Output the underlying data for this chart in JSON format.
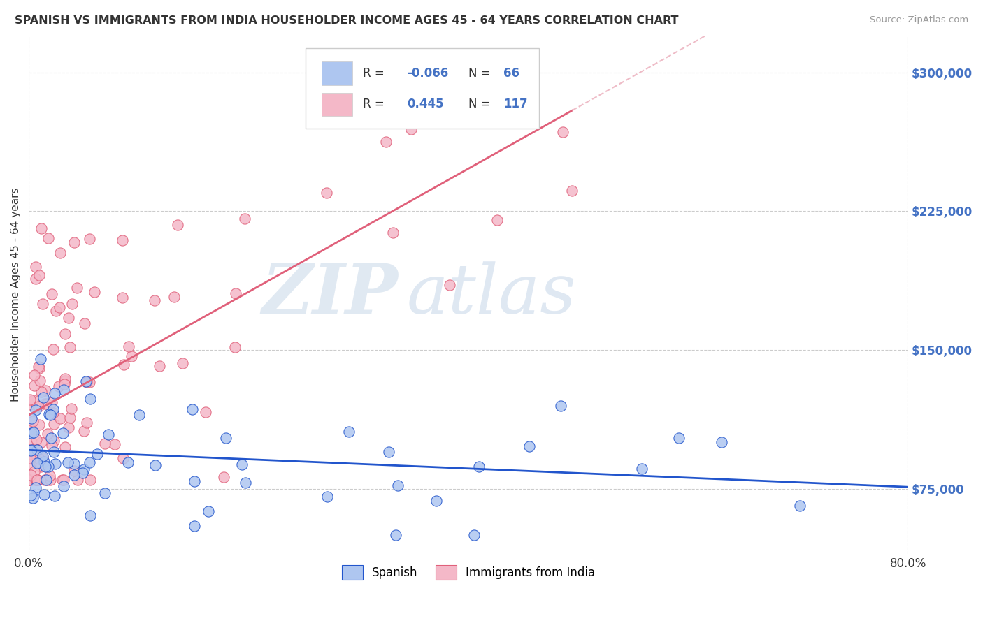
{
  "title": "SPANISH VS IMMIGRANTS FROM INDIA HOUSEHOLDER INCOME AGES 45 - 64 YEARS CORRELATION CHART",
  "source": "Source: ZipAtlas.com",
  "ylabel": "Householder Income Ages 45 - 64 years",
  "xlim": [
    0.0,
    0.8
  ],
  "ylim": [
    40000,
    320000
  ],
  "xtick_labels": [
    "0.0%",
    "80.0%"
  ],
  "ytick_labels": [
    "$75,000",
    "$150,000",
    "$225,000",
    "$300,000"
  ],
  "ytick_values": [
    75000,
    150000,
    225000,
    300000
  ],
  "R_spanish": -0.066,
  "N_spanish": 66,
  "R_india": 0.445,
  "N_india": 117,
  "watermark_zip": "ZIP",
  "watermark_atlas": "atlas",
  "background_color": "#ffffff",
  "grid_color": "#cccccc",
  "spanish_scatter_color": "#aec6f0",
  "india_scatter_color": "#f4b8c8",
  "spanish_line_color": "#2255cc",
  "india_line_color": "#e0607a",
  "india_line_dashed_color": "#e8a0b0",
  "title_color": "#333333",
  "source_color": "#999999",
  "ytick_color": "#4472c4",
  "legend_border_color": "#cccccc",
  "legend_text_color": "#333333",
  "legend_value_color": "#4472c4"
}
